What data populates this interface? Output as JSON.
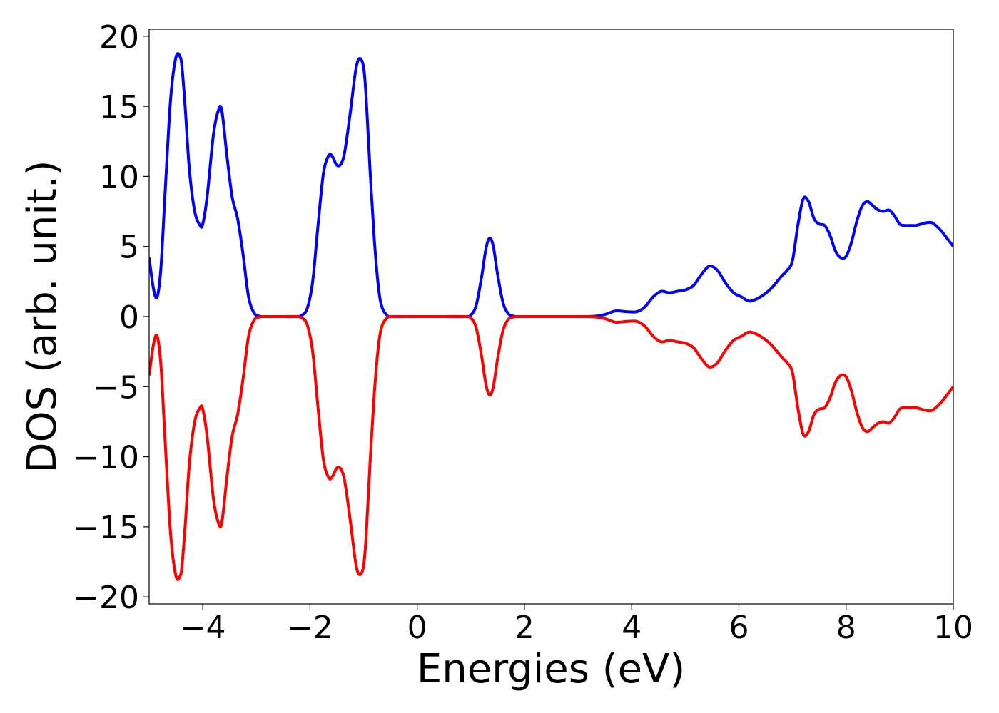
{
  "chart_data": {
    "type": "line",
    "title": "",
    "xlabel": "Energies (eV)",
    "ylabel": "DOS (arb. unit.)",
    "xlim": [
      -5,
      10
    ],
    "ylim": [
      -20.5,
      20.5
    ],
    "xticks": [
      -4,
      -2,
      0,
      2,
      4,
      6,
      8,
      10
    ],
    "xtick_labels": [
      "−4",
      "−2",
      "0",
      "2",
      "4",
      "6",
      "8",
      "10"
    ],
    "yticks": [
      20,
      15,
      10,
      5,
      0,
      -5,
      -10,
      -15,
      -20
    ],
    "ytick_labels": [
      "20",
      "15",
      "10",
      "5",
      "0",
      "−5",
      "−10",
      "−15",
      "−20"
    ],
    "grid": false,
    "legend": "none",
    "series": [
      {
        "color": "#0000ff",
        "x": [
          -5.0,
          -4.92,
          -4.85,
          -4.78,
          -4.7,
          -4.6,
          -4.5,
          -4.42,
          -4.38,
          -4.32,
          -4.25,
          -4.15,
          -4.05,
          -4.0,
          -3.92,
          -3.8,
          -3.7,
          -3.64,
          -3.55,
          -3.45,
          -3.35,
          -3.25,
          -3.15,
          -3.05,
          -2.95,
          -2.85,
          -2.8,
          -2.5,
          -2.25,
          -2.15,
          -2.05,
          -1.95,
          -1.85,
          -1.75,
          -1.65,
          -1.58,
          -1.5,
          -1.42,
          -1.35,
          -1.25,
          -1.15,
          -1.08,
          -1.0,
          -0.95,
          -0.88,
          -0.8,
          -0.72,
          -0.65,
          -0.55,
          -0.5,
          0.0,
          0.5,
          0.9,
          1.0,
          1.1,
          1.2,
          1.28,
          1.35,
          1.42,
          1.5,
          1.6,
          1.7,
          1.8,
          1.9,
          2.5,
          3.0,
          3.3,
          3.5,
          3.7,
          3.9,
          4.1,
          4.25,
          4.4,
          4.55,
          4.7,
          4.85,
          5.0,
          5.15,
          5.3,
          5.45,
          5.6,
          5.75,
          5.9,
          6.05,
          6.2,
          6.4,
          6.6,
          6.8,
          6.9,
          7.0,
          7.1,
          7.2,
          7.3,
          7.4,
          7.5,
          7.6,
          7.7,
          7.8,
          7.9,
          8.0,
          8.1,
          8.2,
          8.3,
          8.4,
          8.5,
          8.6,
          8.7,
          8.8,
          8.9,
          9.0,
          9.1,
          9.2,
          9.3,
          9.4,
          9.5,
          9.6,
          9.7,
          9.8,
          9.9,
          10.0
        ],
        "y": [
          4.2,
          2.0,
          1.4,
          3.5,
          9.0,
          15.5,
          18.5,
          18.5,
          17.5,
          14.5,
          10.5,
          7.5,
          6.5,
          6.6,
          8.5,
          13.0,
          14.8,
          14.6,
          11.5,
          8.5,
          7.0,
          4.5,
          1.5,
          0.3,
          0.03,
          0.0,
          0.0,
          0.0,
          0.0,
          0.1,
          0.6,
          2.5,
          6.5,
          10.2,
          11.5,
          11.4,
          10.8,
          10.9,
          11.8,
          14.5,
          17.5,
          18.4,
          17.8,
          15.5,
          10.5,
          5.5,
          2.0,
          0.6,
          0.05,
          0.0,
          0.0,
          0.0,
          0.0,
          0.1,
          0.8,
          2.8,
          4.8,
          5.6,
          5.0,
          3.0,
          1.0,
          0.2,
          0.03,
          0.0,
          0.0,
          0.0,
          0.02,
          0.15,
          0.4,
          0.35,
          0.35,
          0.7,
          1.4,
          1.8,
          1.7,
          1.8,
          1.9,
          2.2,
          3.0,
          3.6,
          3.3,
          2.4,
          1.7,
          1.4,
          1.1,
          1.4,
          2.0,
          2.9,
          3.3,
          4.0,
          6.5,
          8.4,
          8.2,
          7.0,
          6.6,
          6.5,
          5.8,
          4.7,
          4.2,
          4.3,
          5.3,
          6.8,
          7.9,
          8.2,
          7.9,
          7.6,
          7.5,
          7.6,
          7.2,
          6.6,
          6.5,
          6.5,
          6.5,
          6.6,
          6.7,
          6.7,
          6.4,
          6.0,
          5.5,
          5.0
        ]
      },
      {
        "color": "#ff0000",
        "x": [
          -5.0,
          -4.92,
          -4.85,
          -4.78,
          -4.7,
          -4.6,
          -4.5,
          -4.42,
          -4.38,
          -4.32,
          -4.25,
          -4.15,
          -4.05,
          -4.0,
          -3.92,
          -3.8,
          -3.7,
          -3.64,
          -3.55,
          -3.45,
          -3.35,
          -3.25,
          -3.15,
          -3.05,
          -2.95,
          -2.85,
          -2.8,
          -2.5,
          -2.25,
          -2.15,
          -2.05,
          -1.95,
          -1.85,
          -1.75,
          -1.65,
          -1.58,
          -1.5,
          -1.42,
          -1.35,
          -1.25,
          -1.15,
          -1.08,
          -1.0,
          -0.95,
          -0.88,
          -0.8,
          -0.72,
          -0.65,
          -0.55,
          -0.5,
          0.0,
          0.5,
          0.9,
          1.0,
          1.1,
          1.2,
          1.28,
          1.35,
          1.42,
          1.5,
          1.6,
          1.7,
          1.8,
          1.9,
          2.5,
          3.0,
          3.3,
          3.5,
          3.7,
          3.9,
          4.1,
          4.25,
          4.4,
          4.55,
          4.7,
          4.85,
          5.0,
          5.15,
          5.3,
          5.45,
          5.6,
          5.75,
          5.9,
          6.05,
          6.2,
          6.4,
          6.6,
          6.8,
          6.9,
          7.0,
          7.1,
          7.2,
          7.3,
          7.4,
          7.5,
          7.6,
          7.7,
          7.8,
          7.9,
          8.0,
          8.1,
          8.2,
          8.3,
          8.4,
          8.5,
          8.6,
          8.7,
          8.8,
          8.9,
          9.0,
          9.1,
          9.2,
          9.3,
          9.4,
          9.5,
          9.6,
          9.7,
          9.8,
          9.9,
          10.0
        ],
        "y": [
          -4.2,
          -2.0,
          -1.4,
          -3.5,
          -9.0,
          -15.5,
          -18.5,
          -18.5,
          -17.5,
          -14.5,
          -10.5,
          -7.5,
          -6.5,
          -6.6,
          -8.5,
          -13.0,
          -14.8,
          -14.6,
          -11.5,
          -8.5,
          -7.0,
          -4.5,
          -1.5,
          -0.3,
          -0.03,
          0.0,
          0.0,
          0.0,
          0.0,
          -0.1,
          -0.6,
          -2.5,
          -6.5,
          -10.2,
          -11.5,
          -11.4,
          -10.8,
          -10.9,
          -11.8,
          -14.5,
          -17.5,
          -18.4,
          -17.8,
          -15.5,
          -10.5,
          -5.5,
          -2.0,
          -0.6,
          -0.05,
          0.0,
          0.0,
          0.0,
          0.0,
          -0.1,
          -0.8,
          -2.8,
          -4.8,
          -5.6,
          -5.0,
          -3.0,
          -1.0,
          -0.2,
          -0.03,
          0.0,
          0.0,
          0.0,
          -0.02,
          -0.15,
          -0.4,
          -0.35,
          -0.35,
          -0.7,
          -1.4,
          -1.8,
          -1.7,
          -1.8,
          -1.9,
          -2.2,
          -3.0,
          -3.6,
          -3.3,
          -2.4,
          -1.7,
          -1.4,
          -1.1,
          -1.4,
          -2.0,
          -2.9,
          -3.3,
          -4.0,
          -6.5,
          -8.4,
          -8.2,
          -7.0,
          -6.6,
          -6.5,
          -5.8,
          -4.7,
          -4.2,
          -4.3,
          -5.3,
          -6.8,
          -7.9,
          -8.2,
          -7.9,
          -7.6,
          -7.5,
          -7.6,
          -7.2,
          -6.6,
          -6.5,
          -6.5,
          -6.5,
          -6.6,
          -6.7,
          -6.7,
          -6.4,
          -6.0,
          -5.5,
          -5.0
        ]
      }
    ]
  }
}
